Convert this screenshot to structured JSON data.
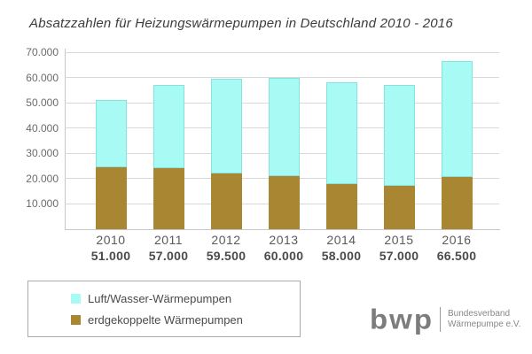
{
  "title": "Absatzzahlen für Heizungswärmepumpen in Deutschland 2010 - 2016",
  "chart_data": {
    "type": "bar",
    "stacked": true,
    "categories": [
      "2010",
      "2011",
      "2012",
      "2013",
      "2014",
      "2015",
      "2016"
    ],
    "totals_labels": [
      "51.000",
      "57.000",
      "59.500",
      "60.000",
      "58.000",
      "57.000",
      "66.500"
    ],
    "totals": [
      51000,
      57000,
      59500,
      60000,
      58000,
      57000,
      66500
    ],
    "series": [
      {
        "name": "Luft/Wasser-Wärmepumpen",
        "color": "#a7fbf4",
        "values": [
          26500,
          33000,
          37500,
          39000,
          40000,
          40000,
          46000
        ]
      },
      {
        "name": "erdgekoppelte Wärmepumpen",
        "color": "#a98631",
        "values": [
          24500,
          24000,
          22000,
          21000,
          18000,
          17000,
          20500
        ]
      }
    ],
    "ylim": [
      0,
      70000
    ],
    "yticks": [
      {
        "label": "10.000",
        "value": 10000
      },
      {
        "label": "20.000",
        "value": 20000
      },
      {
        "label": "30.000",
        "value": 30000
      },
      {
        "label": "40.000",
        "value": 40000
      },
      {
        "label": "50.000",
        "value": 50000
      },
      {
        "label": "60.000",
        "value": 60000
      },
      {
        "label": "70.000",
        "value": 70000
      }
    ],
    "grid": true,
    "legend_position": "bottom-left"
  },
  "logo": {
    "text": "bwp",
    "org_line1": "Bundesverband",
    "org_line2": "Wärmepumpe e.V."
  }
}
